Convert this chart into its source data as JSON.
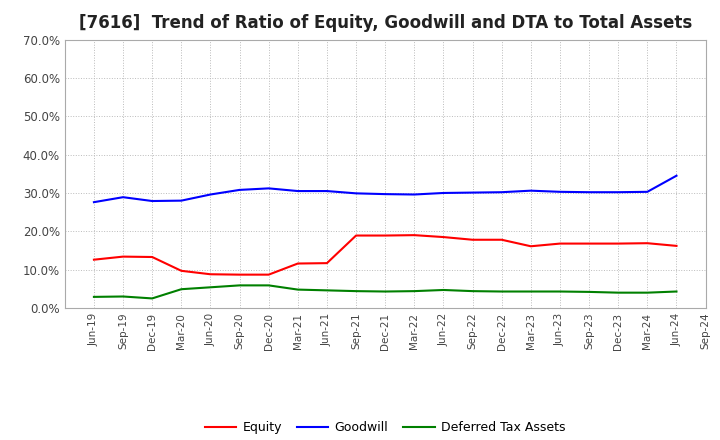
{
  "title": "[7616]  Trend of Ratio of Equity, Goodwill and DTA to Total Assets",
  "x_labels": [
    "Jun-19",
    "Sep-19",
    "Dec-19",
    "Mar-20",
    "Jun-20",
    "Sep-20",
    "Dec-20",
    "Mar-21",
    "Jun-21",
    "Sep-21",
    "Dec-21",
    "Mar-22",
    "Jun-22",
    "Sep-22",
    "Dec-22",
    "Mar-23",
    "Jun-23",
    "Sep-23",
    "Dec-23",
    "Mar-24",
    "Jun-24",
    "Sep-24"
  ],
  "equity": [
    0.126,
    0.134,
    0.133,
    0.097,
    0.088,
    0.087,
    0.087,
    0.116,
    0.117,
    0.189,
    0.189,
    0.19,
    0.185,
    0.178,
    0.178,
    0.161,
    0.168,
    0.168,
    0.168,
    0.169,
    0.162,
    null
  ],
  "goodwill": [
    0.276,
    0.289,
    0.279,
    0.28,
    0.296,
    0.308,
    0.312,
    0.305,
    0.305,
    0.299,
    0.297,
    0.296,
    0.3,
    0.301,
    0.302,
    0.306,
    0.303,
    0.302,
    0.302,
    0.303,
    0.345,
    null
  ],
  "dta": [
    0.029,
    0.03,
    0.025,
    0.049,
    0.054,
    0.059,
    0.059,
    0.048,
    0.046,
    0.044,
    0.043,
    0.044,
    0.047,
    0.044,
    0.043,
    0.043,
    0.043,
    0.042,
    0.04,
    0.04,
    0.043,
    null
  ],
  "equity_color": "#ff0000",
  "goodwill_color": "#0000ff",
  "dta_color": "#008000",
  "ylim": [
    0.0,
    0.7
  ],
  "yticks": [
    0.0,
    0.1,
    0.2,
    0.3,
    0.4,
    0.5,
    0.6,
    0.7
  ],
  "background_color": "#ffffff",
  "grid_color": "#aaaaaa",
  "title_fontsize": 12,
  "legend_labels": [
    "Equity",
    "Goodwill",
    "Deferred Tax Assets"
  ]
}
